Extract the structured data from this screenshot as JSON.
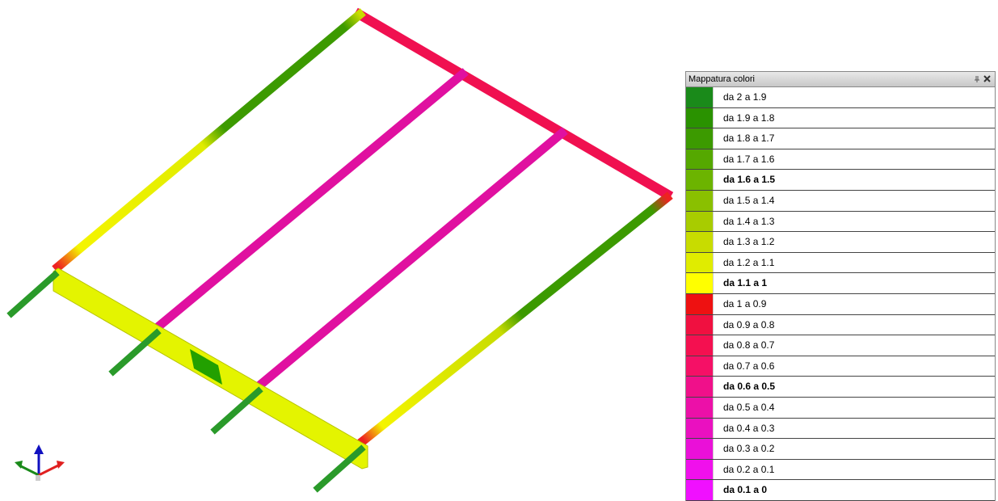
{
  "panel": {
    "title": "Mappatura colori",
    "rows": [
      {
        "label": "da 2 a 1.9",
        "color": "#1a8a1a",
        "bold": false
      },
      {
        "label": "da 1.9 a 1.8",
        "color": "#2a9200",
        "bold": false
      },
      {
        "label": "da 1.8 a 1.7",
        "color": "#3c9a00",
        "bold": false
      },
      {
        "label": "da 1.7 a 1.6",
        "color": "#55a800",
        "bold": false
      },
      {
        "label": "da 1.6 a 1.5",
        "color": "#6cb400",
        "bold": true
      },
      {
        "label": "da 1.5 a 1.4",
        "color": "#8ac000",
        "bold": false
      },
      {
        "label": "da 1.4 a 1.3",
        "color": "#a8cc00",
        "bold": false
      },
      {
        "label": "da 1.3 a 1.2",
        "color": "#c8dc00",
        "bold": false
      },
      {
        "label": "da 1.2 a 1.1",
        "color": "#e0ec00",
        "bold": false
      },
      {
        "label": "da 1.1 a 1",
        "color": "#ffff00",
        "bold": true
      },
      {
        "label": "da 1 a 0.9",
        "color": "#ee1111",
        "bold": false
      },
      {
        "label": "da 0.9 a 0.8",
        "color": "#f01040",
        "bold": false
      },
      {
        "label": "da 0.8 a 0.7",
        "color": "#f41050",
        "bold": false
      },
      {
        "label": "da 0.7 a 0.6",
        "color": "#f51066",
        "bold": false
      },
      {
        "label": "da 0.6 a 0.5",
        "color": "#f0108a",
        "bold": true
      },
      {
        "label": "da 0.5 a 0.4",
        "color": "#ec10a8",
        "bold": false
      },
      {
        "label": "da 0.4 a 0.3",
        "color": "#ea10c0",
        "bold": false
      },
      {
        "label": "da 0.3 a 0.2",
        "color": "#ea10d8",
        "bold": false
      },
      {
        "label": "da 0.2 a 0.1",
        "color": "#f010ec",
        "bold": false
      },
      {
        "label": "da 0.1 a 0",
        "color": "#f010ff",
        "bold": true
      }
    ]
  }
}
